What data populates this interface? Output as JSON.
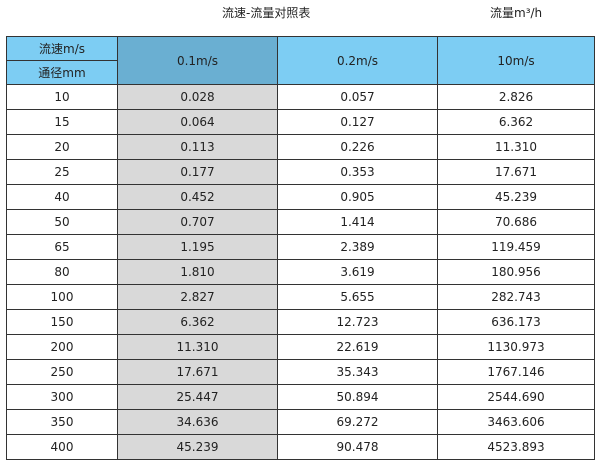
{
  "title": "流速-流量对照表",
  "unit_label": "流量m³/h",
  "header": {
    "velocity_label": "流速m/s",
    "diameter_label": "通径mm",
    "columns": [
      "0.1m/s",
      "0.2m/s",
      "10m/s"
    ]
  },
  "colors": {
    "header": "#7dcdf3",
    "header_highlight": "#6aafd2",
    "highlight_column": "#d9d9d9"
  },
  "rows": [
    [
      "10",
      "0.028",
      "0.057",
      "2.826"
    ],
    [
      "15",
      "0.064",
      "0.127",
      "6.362"
    ],
    [
      "20",
      "0.113",
      "0.226",
      "11.310"
    ],
    [
      "25",
      "0.177",
      "0.353",
      "17.671"
    ],
    [
      "40",
      "0.452",
      "0.905",
      "45.239"
    ],
    [
      "50",
      "0.707",
      "1.414",
      "70.686"
    ],
    [
      "65",
      "1.195",
      "2.389",
      "119.459"
    ],
    [
      "80",
      "1.810",
      "3.619",
      "180.956"
    ],
    [
      "100",
      "2.827",
      "5.655",
      "282.743"
    ],
    [
      "150",
      "6.362",
      "12.723",
      "636.173"
    ],
    [
      "200",
      "11.310",
      "22.619",
      "1130.973"
    ],
    [
      "250",
      "17.671",
      "35.343",
      "1767.146"
    ],
    [
      "300",
      "25.447",
      "50.894",
      "2544.690"
    ],
    [
      "350",
      "34.636",
      "69.272",
      "3463.606"
    ],
    [
      "400",
      "45.239",
      "90.478",
      "4523.893"
    ]
  ]
}
